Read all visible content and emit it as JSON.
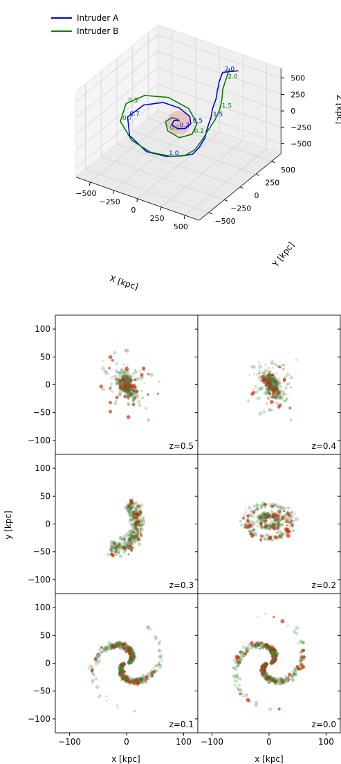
{
  "chart_data": [
    {
      "type": "line",
      "subtype": "3d-orbits",
      "title": "",
      "xlabel": "X [kpc]",
      "ylabel": "Y [kpc]",
      "zlabel": "Z [kpc]",
      "xticks": [
        "−500",
        "−250",
        "0",
        "250",
        "500"
      ],
      "yticks": [
        "−500",
        "−250",
        "0",
        "250",
        "500"
      ],
      "zticks": [
        "500",
        "250",
        "0",
        "−250",
        "−500"
      ],
      "xlim": [
        -650,
        650
      ],
      "ylim": [
        -650,
        650
      ],
      "zlim": [
        -650,
        650
      ],
      "legend_position": "top-left",
      "series": [
        {
          "name": "Intruder A",
          "color": "#0000ee",
          "path": [
            [
              360,
              410,
              650
            ],
            [
              240,
              340,
              620
            ],
            [
              230,
              300,
              500
            ],
            [
              230,
              270,
              380
            ],
            [
              230,
              250,
              280
            ],
            [
              220,
              210,
              160
            ],
            [
              230,
              170,
              60
            ],
            [
              230,
              110,
              -60
            ],
            [
              240,
              60,
              -160
            ],
            [
              230,
              -20,
              -250
            ],
            [
              200,
              -80,
              -320
            ],
            [
              120,
              -150,
              -330
            ],
            [
              30,
              -230,
              -320
            ],
            [
              -150,
              -280,
              -300
            ],
            [
              -350,
              -250,
              -180
            ],
            [
              -450,
              -130,
              -40
            ],
            [
              -380,
              20,
              60
            ],
            [
              -240,
              120,
              90
            ],
            [
              -90,
              150,
              60
            ],
            [
              40,
              120,
              20
            ],
            [
              90,
              60,
              -20
            ],
            [
              80,
              -10,
              -40
            ],
            [
              30,
              -60,
              -30
            ],
            [
              -30,
              -60,
              0
            ],
            [
              -40,
              -10,
              20
            ],
            [
              0,
              20,
              10
            ]
          ],
          "time_labels": [
            {
              "text": "2.0",
              "at": [
                240,
                340,
                620
              ]
            },
            {
              "text": "1.5",
              "at": [
                230,
                170,
                60
              ]
            },
            {
              "text": "1.0",
              "at": [
                30,
                -230,
                -320
              ]
            },
            {
              "text": "0.7",
              "at": [
                -450,
                -130,
                -40
              ]
            },
            {
              "text": "0.5",
              "at": [
                90,
                60,
                -20
              ]
            },
            {
              "text": "0.2",
              "at": [
                30,
                -60,
                -30
              ]
            }
          ]
        },
        {
          "name": "Intruder B",
          "color": "#008000",
          "path": [
            [
              340,
              300,
              760
            ],
            [
              320,
              270,
              600
            ],
            [
              300,
              250,
              460
            ],
            [
              300,
              240,
              320
            ],
            [
              290,
              220,
              180
            ],
            [
              270,
              170,
              40
            ],
            [
              240,
              110,
              -80
            ],
            [
              220,
              40,
              -190
            ],
            [
              200,
              -40,
              -280
            ],
            [
              150,
              -120,
              -330
            ],
            [
              50,
              -200,
              -330
            ],
            [
              -120,
              -260,
              -310
            ],
            [
              -320,
              -260,
              -230
            ],
            [
              -500,
              -170,
              -100
            ],
            [
              -540,
              -20,
              30
            ],
            [
              -430,
              110,
              110
            ],
            [
              -220,
              170,
              140
            ],
            [
              0,
              160,
              90
            ],
            [
              150,
              70,
              10
            ],
            [
              170,
              -40,
              -60
            ],
            [
              90,
              -120,
              -90
            ],
            [
              -40,
              -110,
              -60
            ],
            [
              -110,
              -40,
              -10
            ],
            [
              -80,
              20,
              20
            ],
            [
              -20,
              30,
              10
            ]
          ],
          "time_labels": [
            {
              "text": "2.0",
              "at": [
                320,
                270,
                600
              ]
            },
            {
              "text": "1.5",
              "at": [
                290,
                220,
                180
              ]
            },
            {
              "text": "0.5",
              "at": [
                -540,
                -20,
                30
              ]
            },
            {
              "text": "0.7",
              "at": [
                -500,
                -170,
                -100
              ]
            },
            {
              "text": "0.2",
              "at": [
                170,
                -40,
                -60
              ]
            },
            {
              "text": "0.1",
              "at": [
                -40,
                -110,
                -60
              ]
            }
          ]
        }
      ]
    },
    {
      "type": "scatter",
      "subtype": "density-panels",
      "title": "",
      "xlabel": "x [kpc]",
      "ylabel": "y [kpc]",
      "xlim": [
        -125,
        125
      ],
      "ylim": [
        -125,
        125
      ],
      "xticks": [
        "−100",
        "0",
        "100"
      ],
      "yticks": [
        "100",
        "50",
        "0",
        "−50",
        "−100"
      ],
      "colors": {
        "gas": "#2e8b2e",
        "stars": "#cc2200",
        "old": "#777777"
      },
      "panels": [
        {
          "label": "z=0.5",
          "morphology": "compact",
          "spread": 45,
          "center": [
            0,
            0
          ]
        },
        {
          "label": "z=0.4",
          "morphology": "compact",
          "spread": 40,
          "center": [
            5,
            0
          ]
        },
        {
          "label": "z=0.3",
          "morphology": "arc",
          "spread": 60,
          "center": [
            0,
            0
          ]
        },
        {
          "label": "z=0.2",
          "morphology": "ring",
          "spread": 65,
          "center": [
            0,
            5
          ]
        },
        {
          "label": "z=0.1",
          "morphology": "spiral",
          "spread": 115,
          "center": [
            0,
            0
          ]
        },
        {
          "label": "z=0.0",
          "morphology": "spiral",
          "spread": 120,
          "center": [
            0,
            0
          ]
        }
      ]
    }
  ]
}
